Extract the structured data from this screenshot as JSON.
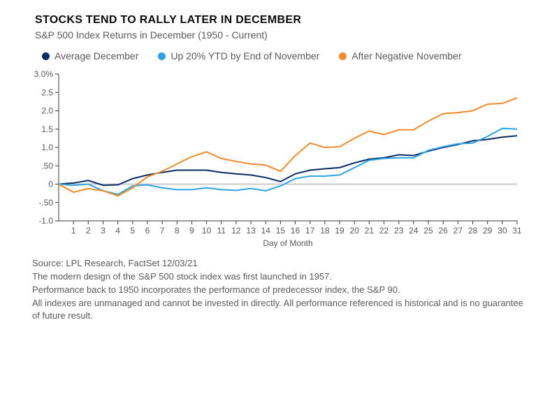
{
  "title": "STOCKS TEND TO RALLY LATER IN DECEMBER",
  "subtitle": "S&P 500 Index Returns in December (1950 - Current)",
  "legend": [
    {
      "label": "Average December",
      "color": "#0a2b61"
    },
    {
      "label": "Up 20% YTD by End of November",
      "color": "#2ea3e6"
    },
    {
      "label": "After Negative November",
      "color": "#f08a2c"
    }
  ],
  "chart": {
    "type": "line",
    "x_label": "Day of Month",
    "x_values": [
      0,
      1,
      2,
      3,
      4,
      5,
      6,
      7,
      8,
      9,
      10,
      11,
      12,
      13,
      14,
      15,
      16,
      17,
      18,
      19,
      20,
      21,
      22,
      23,
      24,
      25,
      26,
      27,
      28,
      29,
      30,
      31
    ],
    "x_ticks": [
      1,
      2,
      3,
      4,
      5,
      6,
      7,
      8,
      9,
      10,
      11,
      12,
      13,
      14,
      15,
      16,
      17,
      18,
      19,
      20,
      21,
      22,
      23,
      24,
      25,
      26,
      27,
      28,
      29,
      30,
      31
    ],
    "ylim": [
      -1.0,
      3.0
    ],
    "y_ticks": [
      {
        "v": 3.0,
        "label": "3.0%"
      },
      {
        "v": 2.5,
        "label": "2.5"
      },
      {
        "v": 2.0,
        "label": "2.0"
      },
      {
        "v": 1.5,
        "label": "1.5"
      },
      {
        "v": 1.0,
        "label": "1.0"
      },
      {
        "v": 0.5,
        "label": ".50"
      },
      {
        "v": 0.0,
        "label": "0"
      },
      {
        "v": -0.5,
        "label": "-.50"
      },
      {
        "v": -1.0,
        "label": "-1.0"
      }
    ],
    "background_color": "#ffffff",
    "axis_color": "#3a3a3a",
    "zero_line_color": "#c9c9c9",
    "line_width": 2,
    "series": [
      {
        "name": "Average December",
        "color": "#0a2b61",
        "y": [
          0.0,
          0.03,
          0.1,
          -0.03,
          -0.02,
          0.15,
          0.25,
          0.32,
          0.38,
          0.38,
          0.38,
          0.32,
          0.28,
          0.25,
          0.18,
          0.07,
          0.28,
          0.38,
          0.42,
          0.45,
          0.58,
          0.68,
          0.72,
          0.8,
          0.78,
          0.9,
          1.0,
          1.08,
          1.18,
          1.22,
          1.28,
          1.32
        ]
      },
      {
        "name": "Up 20% YTD by End of November",
        "color": "#2ea3e6",
        "y": [
          0.0,
          -0.03,
          0.0,
          -0.18,
          -0.28,
          -0.05,
          -0.02,
          -0.1,
          -0.15,
          -0.15,
          -0.1,
          -0.15,
          -0.17,
          -0.12,
          -0.18,
          -0.05,
          0.15,
          0.22,
          0.22,
          0.25,
          0.45,
          0.65,
          0.7,
          0.72,
          0.72,
          0.92,
          1.02,
          1.1,
          1.12,
          1.3,
          1.52,
          1.5
        ]
      },
      {
        "name": "After Negative November",
        "color": "#f08a2c",
        "y": [
          0.0,
          -0.22,
          -0.12,
          -0.18,
          -0.32,
          -0.1,
          0.2,
          0.35,
          0.55,
          0.75,
          0.88,
          0.7,
          0.62,
          0.55,
          0.52,
          0.35,
          0.78,
          1.12,
          1.0,
          1.02,
          1.25,
          1.45,
          1.35,
          1.48,
          1.48,
          1.72,
          1.92,
          1.95,
          2.0,
          2.18,
          2.2,
          2.35
        ]
      }
    ]
  },
  "footnotes": {
    "source": "Source: LPL Research, FactSet  12/03/21",
    "line1": "The modern design of the S&P 500 stock index was first launched in 1957.",
    "line2": "Performance back to 1950 incorporates the performance of predecessor index, the S&P 90.",
    "line3": "All indexes are unmanaged and cannot be invested in directly. All performance referenced is historical and is no guarantee of future result."
  }
}
